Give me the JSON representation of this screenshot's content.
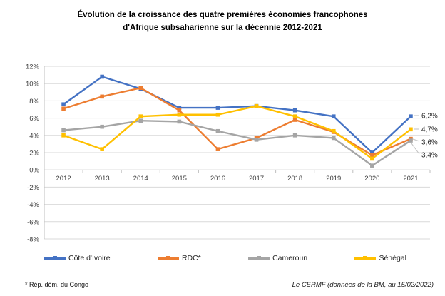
{
  "chart_data": {
    "type": "line",
    "title": "Évolution de la croissance des quatre premières économies francophones d'Afrique subsaharienne sur la décennie 2012-2021",
    "title_lines": [
      "Évolution de la croissance des quatre premières économies francophones",
      "d'Afrique subsaharienne sur la décennie 2012-2021"
    ],
    "categories": [
      "2012",
      "2013",
      "2014",
      "2015",
      "2016",
      "2017",
      "2018",
      "2019",
      "2020",
      "2021"
    ],
    "series": [
      {
        "name": "Côte d'Ivoire",
        "color": "#4472C4",
        "values": [
          7.6,
          10.8,
          9.4,
          7.2,
          7.2,
          7.4,
          6.9,
          6.2,
          2.0,
          6.2
        ]
      },
      {
        "name": "RDC*",
        "color": "#ED7D31",
        "values": [
          7.1,
          8.5,
          9.5,
          6.9,
          2.4,
          3.7,
          5.8,
          4.4,
          1.7,
          3.6
        ]
      },
      {
        "name": "Cameroun",
        "color": "#A5A5A5",
        "values": [
          4.6,
          5.0,
          5.7,
          5.6,
          4.5,
          3.5,
          4.0,
          3.7,
          0.5,
          3.4
        ]
      },
      {
        "name": "Sénégal",
        "color": "#FFC000",
        "values": [
          4.0,
          2.4,
          6.2,
          6.4,
          6.4,
          7.4,
          6.2,
          4.5,
          1.3,
          4.7
        ]
      }
    ],
    "end_labels": [
      {
        "series": "Côte d'Ivoire",
        "text": "6,2%"
      },
      {
        "series": "Sénégal",
        "text": "4,7%"
      },
      {
        "series": "RDC*",
        "text": "3,6%"
      },
      {
        "series": "Cameroun",
        "text": "3,4%"
      }
    ],
    "y_axis": {
      "max": 12,
      "min": -8,
      "step": 2,
      "tick_labels": [
        "12%",
        "10%",
        "8%",
        "6%",
        "4%",
        "2%",
        "0%",
        "-2%",
        "-4%",
        "-6%",
        "-8%"
      ]
    },
    "xlabel": "",
    "ylabel": "",
    "ylim": [
      -8,
      12
    ],
    "grid": true,
    "legend_position": "bottom"
  },
  "footnotes": {
    "left": "* Rép. dém. du Congo",
    "right": "Le CERMF (données de la BM, au 15/02/2022)"
  },
  "colors": {
    "gridline": "#D9D9D9",
    "axis": "#BFBFBF",
    "tick_text": "#404040",
    "end_label_text": "#262626"
  }
}
